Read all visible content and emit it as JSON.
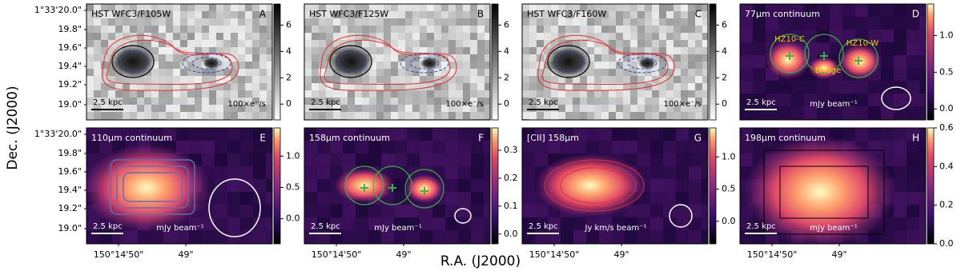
{
  "axes": {
    "ylabel": "Dec. (J2000)",
    "xlabel": "R.A. (J2000)",
    "yticks": [
      "1°33'20.0\"",
      "19.8\"",
      "19.6\"",
      "19.4\"",
      "19.2\"",
      "19.0\""
    ],
    "xticks": [
      "150°14'50\"",
      "49\""
    ]
  },
  "panels": [
    {
      "title": "HST WFC3/F105W",
      "label": "A",
      "scalebar": "2.5 kpc",
      "unit": "100×e⁻/s",
      "colorbar": {
        "lim": [
          -1.2,
          7.6
        ],
        "ticks": [
          0,
          2,
          4,
          6
        ]
      }
    },
    {
      "title": "HST WFC3/F125W",
      "label": "B",
      "scalebar": "2.5 kpc",
      "unit": "100×e⁻/s",
      "colorbar": {
        "lim": [
          -1.2,
          7.6
        ],
        "ticks": [
          0,
          2,
          4,
          6
        ]
      }
    },
    {
      "title": "HST WFC3/F160W",
      "label": "C",
      "scalebar": "2.5 kpc",
      "unit": "100×e⁻/s",
      "colorbar": {
        "lim": [
          -1.2,
          7.6
        ],
        "ticks": [
          0,
          2,
          4,
          6
        ]
      }
    },
    {
      "title": "77μm continuum",
      "label": "D",
      "scalebar": "2.5 kpc",
      "unit": "mJy beam⁻¹",
      "colorbar": {
        "lim": [
          -0.15,
          1.43
        ],
        "ticks": [
          {
            "value": 0,
            "label": "0.0"
          },
          0.5,
          {
            "value": 1,
            "label": "1.0"
          }
        ]
      },
      "annotations": [
        "HZ10-C",
        "HZ10-W",
        "Bridge"
      ]
    },
    {
      "title": "110μm continuum",
      "label": "E",
      "scalebar": "2.5 kpc",
      "unit": "mJy beam⁻¹",
      "colorbar": {
        "lim": [
          -0.4,
          1.45
        ],
        "ticks": [
          {
            "value": 0,
            "label": "0.0"
          },
          0.5,
          {
            "value": 1,
            "label": "1.0"
          }
        ]
      }
    },
    {
      "title": "158μm continuum",
      "label": "F",
      "scalebar": "2.5 kpc",
      "unit": "mJy beam⁻¹",
      "colorbar": {
        "lim": [
          -0.035,
          0.38
        ],
        "ticks": [
          {
            "value": 0,
            "label": "0.0"
          },
          0.1,
          0.2,
          0.3
        ]
      }
    },
    {
      "title": "[CII] 158μm",
      "label": "G",
      "scalebar": "2.5 kpc",
      "unit": "Jy km/s beam⁻¹",
      "colorbar": {
        "lim": [
          -0.35,
          1.45
        ],
        "ticks": [
          {
            "value": 0,
            "label": "0.0"
          },
          0.5,
          {
            "value": 1,
            "label": "1.0"
          }
        ]
      }
    },
    {
      "title": "198μm continuum",
      "label": "H",
      "scalebar": "2.5 kpc",
      "unit": "mJy beam⁻¹",
      "colorbar": {
        "lim": [
          0,
          0.6
        ],
        "ticks": [
          {
            "value": 0,
            "label": "0.0"
          },
          0.2,
          0.4,
          0.6
        ]
      }
    }
  ]
}
